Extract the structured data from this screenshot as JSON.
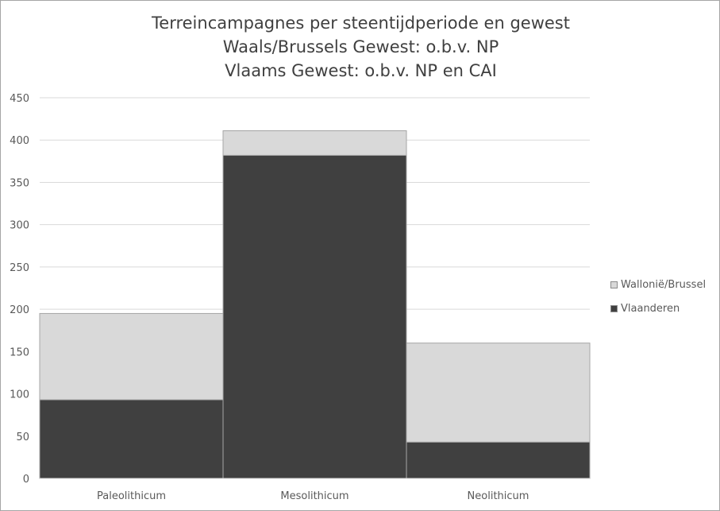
{
  "chart_data": {
    "type": "bar",
    "stacked": true,
    "title": "Terreincampagnes per steentijdperiode en gewest",
    "subtitle": [
      "Waals/Brussels Gewest: o.b.v. NP",
      "Vlaams Gewest: o.b.v. NP en CAI"
    ],
    "xlabel": "",
    "ylabel": "",
    "categories": [
      "Paleolithicum",
      "Mesolithicum",
      "Neolithicum"
    ],
    "series": [
      {
        "name": "Vlaanderen",
        "color": "#404040",
        "values": [
          93,
          382,
          43
        ]
      },
      {
        "name": "Wallonië/Brussel",
        "color": "#d9d9d9",
        "values": [
          102,
          29,
          117
        ]
      }
    ],
    "ylim": [
      0,
      450
    ],
    "yticks": [
      0,
      50,
      100,
      150,
      200,
      250,
      300,
      350,
      400,
      450
    ],
    "grid": true,
    "legend_position": "right",
    "legend_order": [
      "Wallonië/Brussel",
      "Vlaanderen"
    ]
  }
}
